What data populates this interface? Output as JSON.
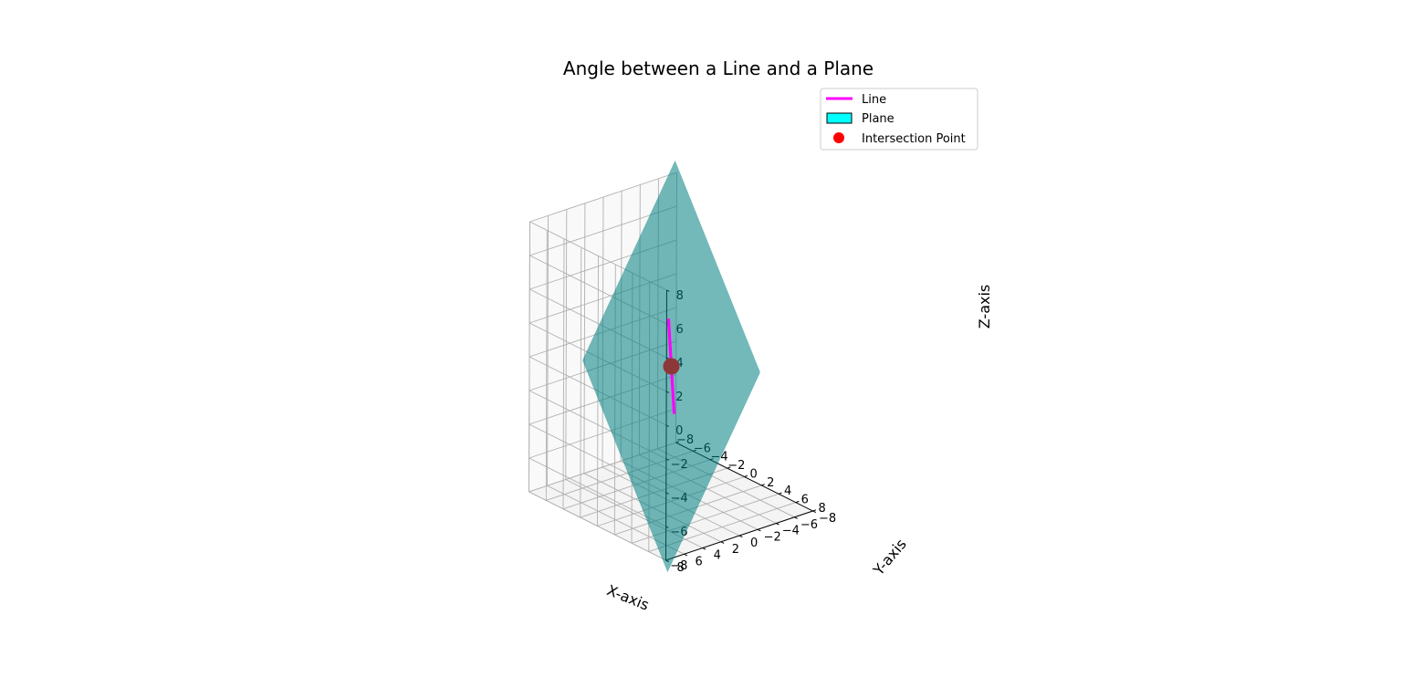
{
  "chart_data": {
    "type": "3d-line-plane",
    "title": "Angle between a Line and a Plane",
    "xlabel": "X-axis",
    "ylabel": "Y-axis",
    "zlabel": "Z-axis",
    "xlim": [
      -8,
      8
    ],
    "ylim": [
      -8,
      8
    ],
    "zlim": [
      -8,
      8
    ],
    "ticks": [
      -8,
      -6,
      -4,
      -2,
      0,
      2,
      4,
      6,
      8
    ],
    "tick_labels": [
      "−8",
      "−6",
      "−4",
      "−2",
      "0",
      "2",
      "4",
      "6",
      "8"
    ],
    "grid": true,
    "legend_position": "top-right",
    "series": [
      {
        "name": "Line",
        "kind": "line",
        "color": "#ff00ff",
        "points": [
          [
            -5,
            -5,
            -5
          ],
          [
            5,
            5,
            5
          ]
        ]
      },
      {
        "name": "Plane",
        "kind": "surface",
        "color": "#008080",
        "legend_color": "#00ffff",
        "equation": "x + y + z = 0",
        "x_range": [
          -5,
          5
        ],
        "y_range": [
          -5,
          5
        ]
      },
      {
        "name": "Intersection Point",
        "kind": "point",
        "color": "#ff0000",
        "point": [
          0,
          0,
          0
        ]
      }
    ]
  }
}
